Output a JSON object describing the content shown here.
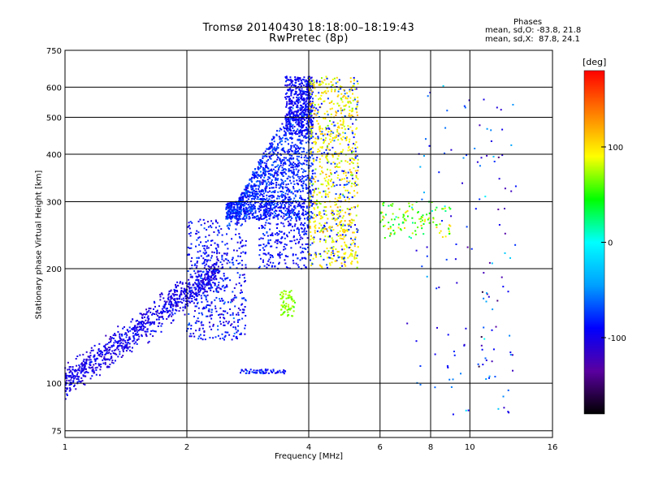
{
  "header": {
    "title_line1": "Tromsø 20140430 18:18:00–18:19:43",
    "title_line2": "RwPretec (8p)",
    "stats_title": "Phases",
    "stats_o": "mean, sd,O: -83.8, 21.8",
    "stats_x": "mean, sd,X:  87.8, 24.1"
  },
  "colorbar": {
    "unit_label": "[deg]",
    "ticks": [
      {
        "label": "100",
        "value": 100
      },
      {
        "label": "0",
        "value": 0
      },
      {
        "label": "-100",
        "value": -100
      }
    ],
    "range": [
      -180,
      180
    ],
    "stops": [
      "#000000",
      "#5a00a0",
      "#0000ff",
      "#00a0ff",
      "#00ffff",
      "#00ff00",
      "#ffff00",
      "#ff8000",
      "#ff0000"
    ]
  },
  "chart_data": {
    "type": "scatter",
    "xscale": "log",
    "yscale": "log",
    "xlabel": "Frequency [MHz]",
    "ylabel": "Stationary phase Virtual Height [km]",
    "xlim": [
      1,
      16
    ],
    "ylim": [
      72,
      750
    ],
    "x_ticks": [
      1,
      2,
      4,
      6,
      8,
      10,
      16
    ],
    "y_ticks": [
      75,
      100,
      200,
      300,
      400,
      500,
      600,
      750
    ],
    "x_tick_labels": [
      "1",
      "2",
      "4",
      "6",
      "8",
      "10",
      "16"
    ],
    "y_tick_labels": [
      "75",
      "100",
      "200",
      "300",
      "400",
      "500",
      "600",
      "750"
    ],
    "grid": true,
    "color_variable": "phase [deg]",
    "clusters": [
      {
        "name": "low-frequency trace",
        "freq": [
          1.0,
          2.3
        ],
        "height": [
          95,
          200
        ],
        "phase": -100
      },
      {
        "name": "E/F1 rise",
        "freq": [
          2.0,
          2.8
        ],
        "height": [
          130,
          260
        ],
        "phase": -90
      },
      {
        "name": "F region O-mode",
        "freq": [
          2.5,
          4.1
        ],
        "height": [
          270,
          640
        ],
        "phase": -80
      },
      {
        "name": "F region X-mode",
        "freq": [
          4.0,
          5.3
        ],
        "height": [
          200,
          640
        ],
        "phase": 95
      },
      {
        "name": "sporadic layer",
        "freq": [
          2.7,
          3.5
        ],
        "height": [
          106,
          108
        ],
        "phase": -90
      },
      {
        "name": "oblique echoes",
        "freq": [
          6.0,
          9.0
        ],
        "height": [
          240,
          300
        ],
        "phase": 60
      },
      {
        "name": "isolated points",
        "freq": [
          7.0,
          13.0
        ],
        "height": [
          80,
          600
        ],
        "phase": -80
      }
    ]
  }
}
